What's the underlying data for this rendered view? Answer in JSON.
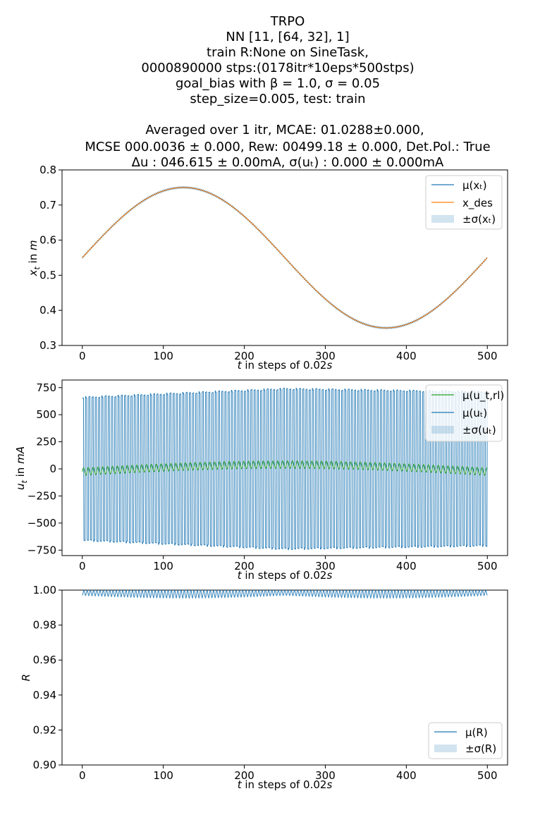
{
  "title_lines": [
    "TRPO",
    "NN [11, [64, 32], 1]",
    "train R:None on SineTask,",
    "0000890000 stps:(0178itr*10eps*500stps)",
    "goal_bias with β = 1.0, σ = 0.05",
    "step_size=0.005, test: train",
    "",
    "Averaged over 1 itr, MCAE: 01.0288±0.000,",
    "MCSE 000.0036 ± 0.000, Rew: 00499.18 ± 0.000, Det.Pol.: True",
    "Δu : 046.615 ± 0.00mA, σ(uₜ) : 0.000 ± 0.000mA"
  ],
  "colors": {
    "blue": "#1f77b4",
    "orange": "#ff7f0e",
    "green": "#2ca02c",
    "band": "#1f77b4"
  },
  "chart_data": [
    {
      "type": "line",
      "xlabel": "t in steps of 0.02s",
      "ylabel": "xₜ in m",
      "xlim": [
        -25,
        525
      ],
      "ylim": [
        0.3,
        0.8
      ],
      "xticks": [
        0,
        100,
        200,
        300,
        400,
        500
      ],
      "yticks": [
        0.3,
        0.4,
        0.5,
        0.6,
        0.7,
        0.8
      ],
      "xtick_labels": [
        "0",
        "100",
        "200",
        "300",
        "400",
        "500"
      ],
      "ytick_labels": [
        "0.3",
        "0.4",
        "0.5",
        "0.6",
        "0.7",
        "0.8"
      ],
      "legend_position": "top-right",
      "legend": [
        "μ(xₜ)",
        "x_des",
        "±σ(xₜ)"
      ],
      "series": [
        {
          "name": "μ(xₜ)",
          "color": "blue",
          "formula": "0.55 + 0.2*sin(2*pi*t/500)",
          "x_range": [
            0,
            500
          ],
          "jitter": 0.002
        },
        {
          "name": "x_des",
          "color": "orange",
          "formula": "0.55 + 0.2*sin(2*pi*t/500)",
          "x_range": [
            0,
            500
          ]
        }
      ]
    },
    {
      "type": "line",
      "xlabel": "t in steps of 0.02s",
      "ylabel": "uₜ in mA",
      "xlim": [
        -25,
        525
      ],
      "ylim": [
        -800,
        820
      ],
      "xticks": [
        0,
        100,
        200,
        300,
        400,
        500
      ],
      "yticks": [
        -750,
        -500,
        -250,
        0,
        250,
        500,
        750
      ],
      "xtick_labels": [
        "0",
        "100",
        "200",
        "300",
        "400",
        "500"
      ],
      "ytick_labels": [
        "−750",
        "−500",
        "−250",
        "0",
        "250",
        "500",
        "750"
      ],
      "legend_position": "top-right",
      "legend": [
        "μ(u_t,rl)",
        "μ(uₜ)",
        "±σ(uₜ)"
      ],
      "series": [
        {
          "name": "μ(u_t,rl)",
          "color": "green",
          "formula": "oscillation between -70 and 10, mean rises to ~50 near t=250",
          "x_range": [
            0,
            500
          ]
        },
        {
          "name": "μ(uₜ)",
          "color": "blue",
          "formula": "oscillation amplitude ~650 at t=0, ~730 at t=250, ~700 at t=500, period ~4 steps",
          "x_range": [
            0,
            500
          ]
        }
      ]
    },
    {
      "type": "line",
      "xlabel": "t in steps of 0.02s",
      "ylabel": "R",
      "xlim": [
        -25,
        525
      ],
      "ylim": [
        0.9,
        1.0
      ],
      "xticks": [
        0,
        100,
        200,
        300,
        400,
        500
      ],
      "yticks": [
        0.9,
        0.92,
        0.94,
        0.96,
        0.98,
        1.0
      ],
      "xtick_labels": [
        "0",
        "100",
        "200",
        "300",
        "400",
        "500"
      ],
      "ytick_labels": [
        "0.90",
        "0.92",
        "0.94",
        "0.96",
        "0.98",
        "1.00"
      ],
      "legend_position": "bottom-right",
      "legend": [
        "μ(R)",
        "±σ(R)"
      ],
      "series": [
        {
          "name": "μ(R)",
          "color": "blue",
          "formula": "oscillation between 0.995 and 1.0",
          "x_range": [
            0,
            500
          ]
        }
      ]
    }
  ]
}
